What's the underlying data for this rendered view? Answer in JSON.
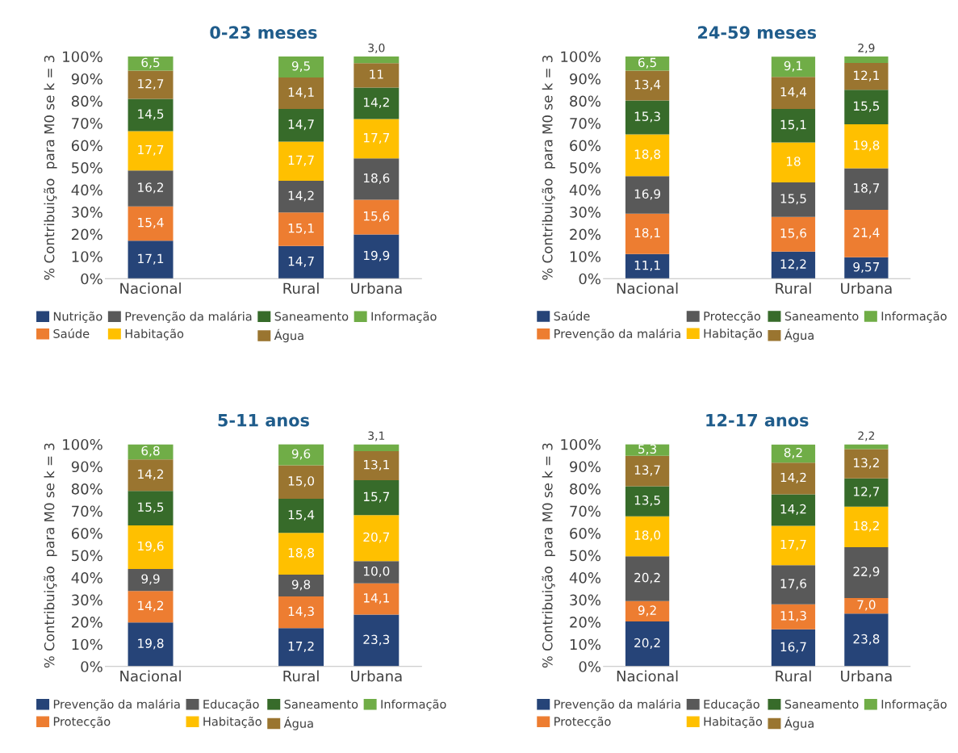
{
  "chart_data": [
    {
      "type": "bar",
      "stacked": true,
      "title": "0-23 meses",
      "ylabel": "% Contribuição  para M0 se k = 3",
      "categories": [
        "Nacional",
        null,
        "Rural",
        "Urbana"
      ],
      "ylim": [
        0,
        100
      ],
      "yticks": [
        {
          "value": 0,
          "label": "0%"
        },
        {
          "value": 10,
          "label": "10%"
        },
        {
          "value": 20,
          "label": "20%"
        },
        {
          "value": 30,
          "label": "30%"
        },
        {
          "value": 40,
          "label": "40%"
        },
        {
          "value": 50,
          "label": "50%"
        },
        {
          "value": 60,
          "label": "60%"
        },
        {
          "value": 70,
          "label": "70%"
        },
        {
          "value": 80,
          "label": "80%"
        },
        {
          "value": 90,
          "label": "90%"
        },
        {
          "value": 100,
          "label": "100%"
        }
      ],
      "grid": false,
      "legend": "bottom",
      "series": [
        {
          "name": "Nutrição",
          "color": "#264478",
          "values": [
            17.1,
            null,
            14.7,
            19.9
          ],
          "value_labels": [
            "17,1",
            null,
            "14,7",
            "19,9"
          ]
        },
        {
          "name": "Saúde",
          "color": "#ed7d31",
          "values": [
            15.4,
            null,
            15.1,
            15.6
          ],
          "value_labels": [
            "15,4",
            null,
            "15,1",
            "15,6"
          ]
        },
        {
          "name": "Prevenção da malária",
          "color": "#595959",
          "values": [
            16.2,
            null,
            14.2,
            18.6
          ],
          "value_labels": [
            "16,2",
            null,
            "14,2",
            "18,6"
          ]
        },
        {
          "name": "Habitação",
          "color": "#ffc000",
          "values": [
            17.7,
            null,
            17.7,
            17.7
          ],
          "value_labels": [
            "17,7",
            null,
            "17,7",
            "17,7"
          ]
        },
        {
          "name": "Saneamento",
          "color": "#376b2a",
          "values": [
            14.5,
            null,
            14.7,
            14.2
          ],
          "value_labels": [
            "14,5",
            null,
            "14,7",
            "14,2"
          ]
        },
        {
          "name": "Água",
          "color": "#9a7530",
          "values": [
            12.7,
            null,
            14.1,
            11
          ],
          "value_labels": [
            "12,7",
            null,
            "14,1",
            "11"
          ]
        },
        {
          "name": "Informação",
          "color": "#70ad47",
          "values": [
            6.5,
            null,
            9.5,
            3.0
          ],
          "value_labels": [
            "6,5",
            null,
            "9,5",
            "3,0"
          ]
        }
      ]
    },
    {
      "type": "bar",
      "stacked": true,
      "title": "24-59 meses",
      "ylabel": "% Contribuição  para M0 se k = 3",
      "categories": [
        "Nacional",
        null,
        "Rural",
        "Urbana"
      ],
      "ylim": [
        0,
        100
      ],
      "yticks": [
        {
          "value": 0,
          "label": "0%"
        },
        {
          "value": 10,
          "label": "10%"
        },
        {
          "value": 20,
          "label": "20%"
        },
        {
          "value": 30,
          "label": "30%"
        },
        {
          "value": 40,
          "label": "40%"
        },
        {
          "value": 50,
          "label": "50%"
        },
        {
          "value": 60,
          "label": "60%"
        },
        {
          "value": 70,
          "label": "70%"
        },
        {
          "value": 80,
          "label": "80%"
        },
        {
          "value": 90,
          "label": "90%"
        },
        {
          "value": 100,
          "label": "100%"
        }
      ],
      "grid": false,
      "legend": "bottom",
      "series": [
        {
          "name": "Saúde",
          "color": "#264478",
          "values": [
            11.1,
            null,
            12.2,
            9.57
          ],
          "value_labels": [
            "11,1",
            null,
            "12,2",
            "9,57"
          ]
        },
        {
          "name": "Prevenção da malária",
          "color": "#ed7d31",
          "values": [
            18.1,
            null,
            15.6,
            21.4
          ],
          "value_labels": [
            "18,1",
            null,
            "15,6",
            "21,4"
          ]
        },
        {
          "name": "Protecção",
          "color": "#595959",
          "values": [
            16.9,
            null,
            15.5,
            18.7
          ],
          "value_labels": [
            "16,9",
            null,
            "15,5",
            "18,7"
          ]
        },
        {
          "name": "Habitação",
          "color": "#ffc000",
          "values": [
            18.8,
            null,
            18,
            19.8
          ],
          "value_labels": [
            "18,8",
            null,
            "18",
            "19,8"
          ]
        },
        {
          "name": "Saneamento",
          "color": "#376b2a",
          "values": [
            15.3,
            null,
            15.1,
            15.5
          ],
          "value_labels": [
            "15,3",
            null,
            "15,1",
            "15,5"
          ]
        },
        {
          "name": "Água",
          "color": "#9a7530",
          "values": [
            13.4,
            null,
            14.4,
            12.1
          ],
          "value_labels": [
            "13,4",
            null,
            "14,4",
            "12,1"
          ]
        },
        {
          "name": "Informação",
          "color": "#70ad47",
          "values": [
            6.5,
            null,
            9.1,
            2.9
          ],
          "value_labels": [
            "6,5",
            null,
            "9,1",
            "2,9"
          ]
        }
      ]
    },
    {
      "type": "bar",
      "stacked": true,
      "title": "5-11 anos",
      "ylabel": "% Contribuição  para M0 se k = 3",
      "categories": [
        "Nacional",
        null,
        "Rural",
        "Urbana"
      ],
      "ylim": [
        0,
        100
      ],
      "yticks": [
        {
          "value": 0,
          "label": "0%"
        },
        {
          "value": 10,
          "label": "10%"
        },
        {
          "value": 20,
          "label": "20%"
        },
        {
          "value": 30,
          "label": "30%"
        },
        {
          "value": 40,
          "label": "40%"
        },
        {
          "value": 50,
          "label": "50%"
        },
        {
          "value": 60,
          "label": "60%"
        },
        {
          "value": 70,
          "label": "70%"
        },
        {
          "value": 80,
          "label": "80%"
        },
        {
          "value": 90,
          "label": "90%"
        },
        {
          "value": 100,
          "label": "100%"
        }
      ],
      "grid": false,
      "legend": "bottom",
      "series": [
        {
          "name": "Prevenção da malária",
          "color": "#264478",
          "values": [
            19.8,
            null,
            17.2,
            23.3
          ],
          "value_labels": [
            "19,8",
            null,
            "17,2",
            "23,3"
          ]
        },
        {
          "name": "Protecção",
          "color": "#ed7d31",
          "values": [
            14.2,
            null,
            14.3,
            14.1
          ],
          "value_labels": [
            "14,2",
            null,
            "14,3",
            "14,1"
          ]
        },
        {
          "name": "Educação",
          "color": "#595959",
          "values": [
            9.9,
            null,
            9.8,
            10.0
          ],
          "value_labels": [
            "9,9",
            null,
            "9,8",
            "10,0"
          ]
        },
        {
          "name": "Habitação",
          "color": "#ffc000",
          "values": [
            19.6,
            null,
            18.8,
            20.7
          ],
          "value_labels": [
            "19,6",
            null,
            "18,8",
            "20,7"
          ]
        },
        {
          "name": "Saneamento",
          "color": "#376b2a",
          "values": [
            15.5,
            null,
            15.4,
            15.7
          ],
          "value_labels": [
            "15,5",
            null,
            "15,4",
            "15,7"
          ]
        },
        {
          "name": "Água",
          "color": "#9a7530",
          "values": [
            14.2,
            null,
            15.0,
            13.1
          ],
          "value_labels": [
            "14,2",
            null,
            "15,0",
            "13,1"
          ]
        },
        {
          "name": "Informação",
          "color": "#70ad47",
          "values": [
            6.8,
            null,
            9.6,
            3.1
          ],
          "value_labels": [
            "6,8",
            null,
            "9,6",
            "3,1"
          ]
        }
      ]
    },
    {
      "type": "bar",
      "stacked": true,
      "title": "12-17 anos",
      "ylabel": "% Contribuição  para M0 se k = 3",
      "categories": [
        "Nacional",
        null,
        "Rural",
        "Urbana"
      ],
      "ylim": [
        0,
        100
      ],
      "yticks": [
        {
          "value": 0,
          "label": "0%"
        },
        {
          "value": 10,
          "label": "10%"
        },
        {
          "value": 20,
          "label": "20%"
        },
        {
          "value": 30,
          "label": "30%"
        },
        {
          "value": 40,
          "label": "40%"
        },
        {
          "value": 50,
          "label": "50%"
        },
        {
          "value": 60,
          "label": "60%"
        },
        {
          "value": 70,
          "label": "70%"
        },
        {
          "value": 80,
          "label": "80%"
        },
        {
          "value": 90,
          "label": "90%"
        },
        {
          "value": 100,
          "label": "100%"
        }
      ],
      "grid": false,
      "legend": "bottom",
      "series": [
        {
          "name": "Prevenção da malária",
          "color": "#264478",
          "values": [
            20.2,
            null,
            16.7,
            23.8
          ],
          "value_labels": [
            "20,2",
            null,
            "16,7",
            "23,8"
          ]
        },
        {
          "name": "Protecção",
          "color": "#ed7d31",
          "values": [
            9.2,
            null,
            11.3,
            7.0
          ],
          "value_labels": [
            "9,2",
            null,
            "11,3",
            "7,0"
          ]
        },
        {
          "name": "Educação",
          "color": "#595959",
          "values": [
            20.2,
            null,
            17.6,
            22.9
          ],
          "value_labels": [
            "20,2",
            null,
            "17,6",
            "22,9"
          ]
        },
        {
          "name": "Habitação",
          "color": "#ffc000",
          "values": [
            18.0,
            null,
            17.7,
            18.2
          ],
          "value_labels": [
            "18,0",
            null,
            "17,7",
            "18,2"
          ]
        },
        {
          "name": "Saneamento",
          "color": "#376b2a",
          "values": [
            13.5,
            null,
            14.2,
            12.7
          ],
          "value_labels": [
            "13,5",
            null,
            "14,2",
            "12,7"
          ]
        },
        {
          "name": "Água",
          "color": "#9a7530",
          "values": [
            13.7,
            null,
            14.2,
            13.2
          ],
          "value_labels": [
            "13,7",
            null,
            "14,2",
            "13,2"
          ]
        },
        {
          "name": "Informação",
          "color": "#70ad47",
          "values": [
            5.3,
            null,
            8.2,
            2.2
          ],
          "value_labels": [
            "5,3",
            null,
            "8,2",
            "2,2"
          ]
        }
      ]
    }
  ]
}
